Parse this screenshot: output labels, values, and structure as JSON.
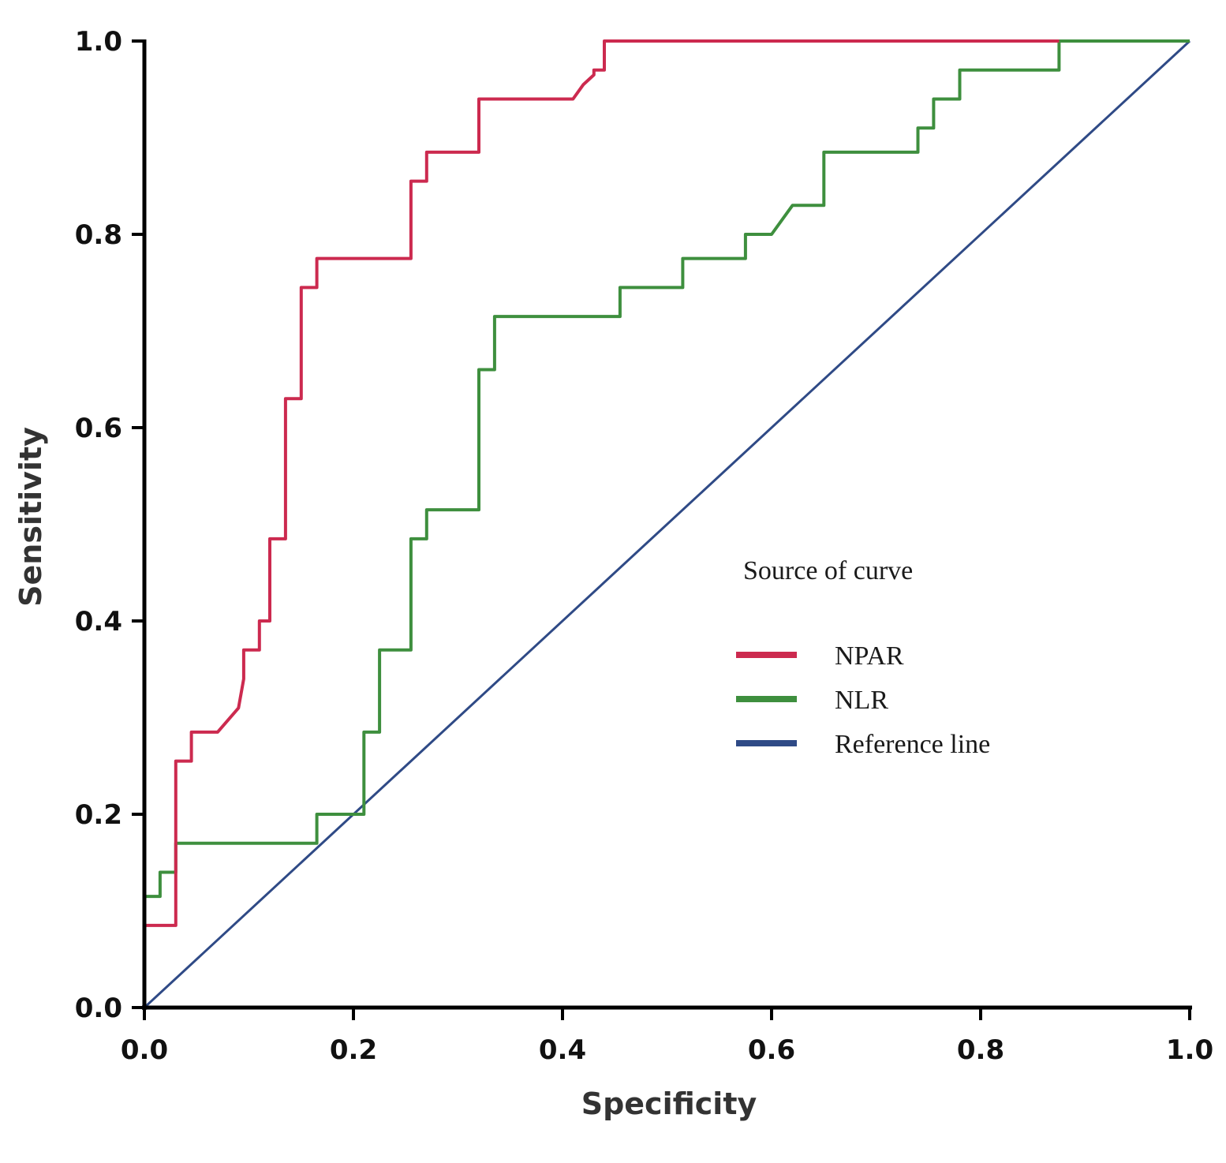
{
  "chart_data": {
    "type": "line",
    "xlabel": "Specificity",
    "ylabel": "Sensitivity",
    "xlim": [
      0.0,
      1.0
    ],
    "ylim": [
      0.0,
      1.0
    ],
    "x_ticks": [
      "0.0",
      "0.2",
      "0.4",
      "0.6",
      "0.8",
      "1.0"
    ],
    "y_ticks": [
      "0.0",
      "0.2",
      "0.4",
      "0.6",
      "0.8",
      "1.0"
    ],
    "grid": false,
    "legend": {
      "title": "Source of curve",
      "position": "center-right"
    },
    "series": [
      {
        "name": "NPAR",
        "color": "#cc2a4f",
        "step": true,
        "x": [
          0.0,
          0.03,
          0.03,
          0.045,
          0.045,
          0.07,
          0.09,
          0.095,
          0.095,
          0.11,
          0.11,
          0.12,
          0.12,
          0.135,
          0.135,
          0.15,
          0.15,
          0.165,
          0.165,
          0.255,
          0.255,
          0.27,
          0.27,
          0.32,
          0.32,
          0.41,
          0.42,
          0.43,
          0.43,
          0.44,
          0.44,
          0.875
        ],
        "y": [
          0.085,
          0.085,
          0.255,
          0.255,
          0.285,
          0.285,
          0.31,
          0.34,
          0.37,
          0.37,
          0.4,
          0.4,
          0.485,
          0.485,
          0.63,
          0.63,
          0.745,
          0.745,
          0.775,
          0.775,
          0.855,
          0.855,
          0.885,
          0.885,
          0.94,
          0.94,
          0.955,
          0.965,
          0.97,
          0.97,
          1.0,
          1.0
        ]
      },
      {
        "name": "NLR",
        "color": "#3e8f3e",
        "step": true,
        "x": [
          0.0,
          0.015,
          0.015,
          0.03,
          0.03,
          0.165,
          0.165,
          0.21,
          0.21,
          0.225,
          0.225,
          0.255,
          0.255,
          0.27,
          0.27,
          0.32,
          0.32,
          0.335,
          0.335,
          0.455,
          0.455,
          0.515,
          0.515,
          0.575,
          0.575,
          0.6,
          0.62,
          0.62,
          0.65,
          0.65,
          0.74,
          0.74,
          0.755,
          0.755,
          0.78,
          0.78,
          0.875,
          0.875,
          1.0
        ],
        "y": [
          0.115,
          0.115,
          0.14,
          0.14,
          0.17,
          0.17,
          0.2,
          0.2,
          0.285,
          0.285,
          0.37,
          0.37,
          0.485,
          0.485,
          0.515,
          0.515,
          0.66,
          0.66,
          0.715,
          0.715,
          0.745,
          0.745,
          0.775,
          0.775,
          0.8,
          0.8,
          0.83,
          0.83,
          0.83,
          0.885,
          0.885,
          0.91,
          0.91,
          0.94,
          0.94,
          0.97,
          0.97,
          1.0,
          1.0
        ]
      },
      {
        "name": "Reference line",
        "color": "#2f4a86",
        "step": false,
        "x": [
          0.0,
          1.0
        ],
        "y": [
          0.0,
          1.0
        ]
      }
    ]
  }
}
